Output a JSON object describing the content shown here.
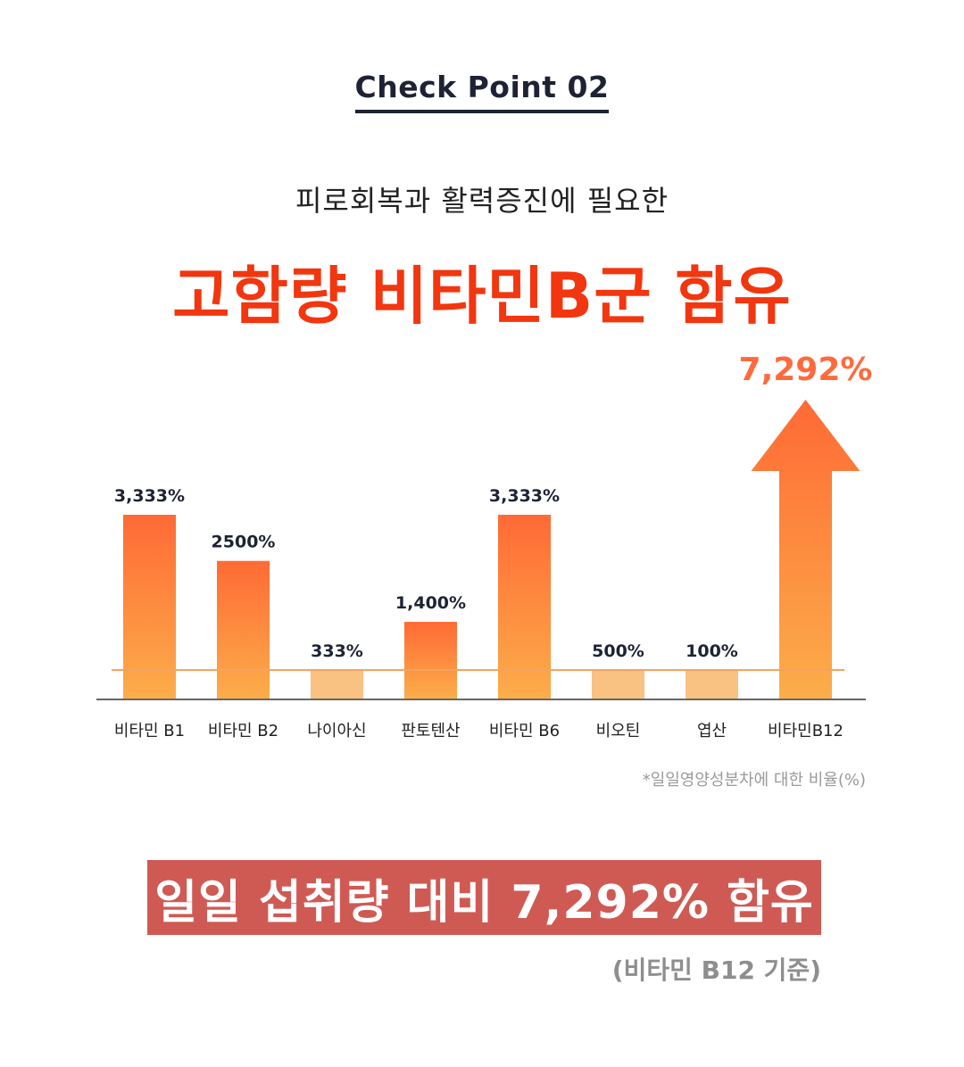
{
  "header": {
    "checkpoint": "Check Point 02",
    "subtitle": "피로회복과 활력증진에 필요한",
    "headline": "고함량 비타민B군 함유"
  },
  "chart_data": {
    "type": "bar",
    "categories": [
      "비타민 B1",
      "비타민 B2",
      "나이아신",
      "판토텐산",
      "비타민 B6",
      "비오틴",
      "엽산",
      "비타민B12"
    ],
    "values": [
      3333,
      2500,
      333,
      1400,
      3333,
      500,
      100,
      7292
    ],
    "data_labels": [
      "3,333%",
      "2500%",
      "333%",
      "1,400%",
      "3,333%",
      "500%",
      "100%",
      "7,292%"
    ],
    "highlight": [
      true,
      true,
      false,
      true,
      true,
      false,
      false,
      true
    ],
    "reference_line": 100,
    "colors": {
      "highlight_top": "#ff6a35",
      "highlight_bottom": "#fbae4a",
      "muted": "#fac282",
      "reference_line": "#f5a35f",
      "axis": "#666666",
      "big_label": "#ff6a3d"
    }
  },
  "footnote": "*일일영양성분차에 대한 비율(%)",
  "banner": "일일 섭취량 대비 7,292% 함유",
  "basis": "(비타민 B12 기준)"
}
